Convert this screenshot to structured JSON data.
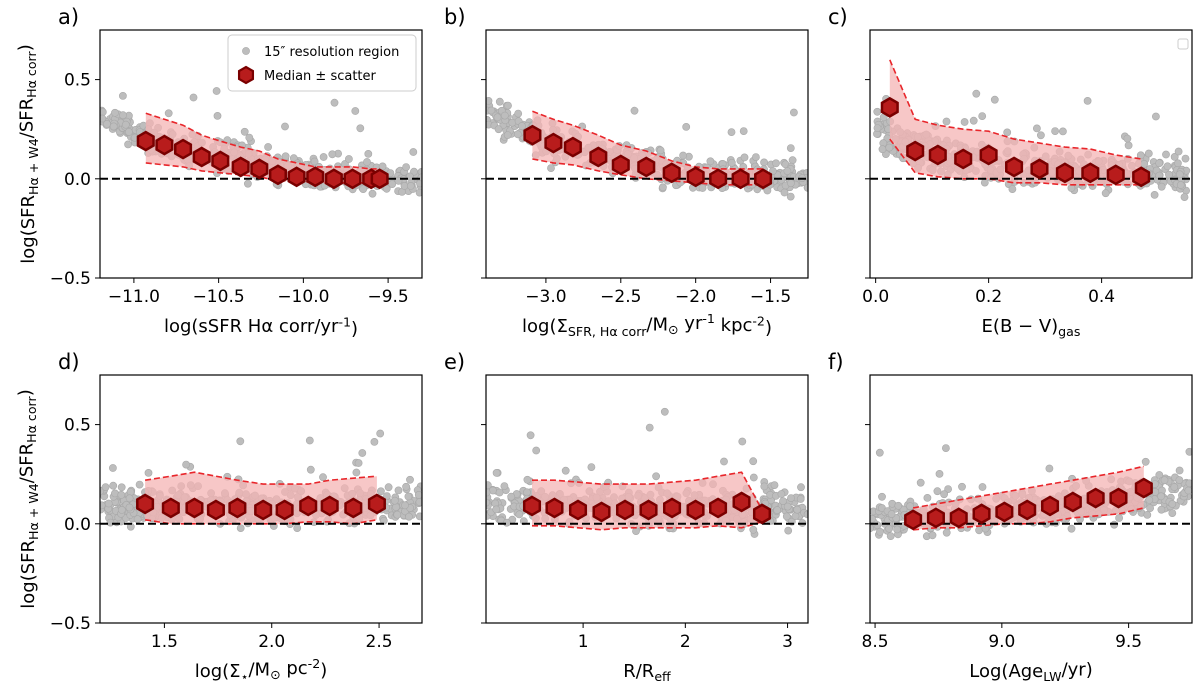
{
  "figure": {
    "ylabel": "log(SFR_{Hα + W4}/SFR_{Hα corr})",
    "legend": {
      "scatter_label": "15″ resolution region",
      "median_label": "Median ± scatter"
    }
  },
  "colors": {
    "scatter": "#bdbdbd",
    "scatter_edge": "#a8a8a8",
    "median_fill": "#b81c1c",
    "median_edge": "#7a0000",
    "band_fill": "#f4b4b4",
    "band_edge": "#e8262b",
    "reference_line": "#000000"
  },
  "chart_data": [
    {
      "type": "scatter",
      "panel": "a)",
      "xlabel": "log(sSFR Hα corr/yr^{-1})",
      "xlim": [
        -11.2,
        -9.3
      ],
      "ylim": [
        -0.5,
        0.75
      ],
      "xticks": [
        -11.0,
        -10.5,
        -10.0,
        -9.5
      ],
      "xtick_labels": [
        "−11.0",
        "−10.5",
        "−10.0",
        "−9.5"
      ],
      "yticks": [
        -0.5,
        0.0,
        0.5
      ],
      "ytick_labels": [
        "−0.5",
        "0.0",
        "0.5"
      ],
      "reference_y": 0,
      "legend": true,
      "scatter_profile": {
        "x_range": [
          -11.2,
          -9.3
        ],
        "trend": [
          [
            -11.2,
            0.3
          ],
          [
            -10.9,
            0.2
          ],
          [
            -10.5,
            0.12
          ],
          [
            -10.0,
            0.03
          ],
          [
            -9.3,
            0.0
          ]
        ],
        "spread": 0.1,
        "n": 480
      },
      "median": {
        "x": [
          -10.93,
          -10.82,
          -10.71,
          -10.6,
          -10.49,
          -10.37,
          -10.26,
          -10.15,
          -10.04,
          -9.93,
          -9.82,
          -9.71,
          -9.6,
          -9.55
        ],
        "y": [
          0.19,
          0.17,
          0.15,
          0.11,
          0.09,
          0.06,
          0.05,
          0.02,
          0.01,
          0.01,
          0.0,
          0.0,
          0.0,
          0.0
        ],
        "lo": [
          0.08,
          0.07,
          0.06,
          0.04,
          0.03,
          0.02,
          0.01,
          -0.01,
          -0.01,
          -0.02,
          -0.02,
          -0.02,
          -0.02,
          -0.02
        ],
        "hi": [
          0.33,
          0.3,
          0.27,
          0.22,
          0.19,
          0.16,
          0.14,
          0.1,
          0.08,
          0.06,
          0.06,
          0.06,
          0.05,
          0.05
        ]
      }
    },
    {
      "type": "scatter",
      "panel": "b)",
      "xlabel": "log(Σ_{SFR, Hα corr}/M_⊙ yr^{-1} kpc^{-2})",
      "xlim": [
        -3.4,
        -1.25
      ],
      "ylim": [
        -0.5,
        0.75
      ],
      "xticks": [
        -3.0,
        -2.5,
        -2.0,
        -1.5
      ],
      "xtick_labels": [
        "−3.0",
        "−2.5",
        "−2.0",
        "−1.5"
      ],
      "yticks": [
        -0.5,
        0.0,
        0.5
      ],
      "ytick_labels": [],
      "reference_y": 0,
      "legend": false,
      "scatter_profile": {
        "x_range": [
          -3.4,
          -1.25
        ],
        "trend": [
          [
            -3.4,
            0.32
          ],
          [
            -3.0,
            0.2
          ],
          [
            -2.5,
            0.1
          ],
          [
            -2.0,
            0.02
          ],
          [
            -1.25,
            0.0
          ]
        ],
        "spread": 0.1,
        "n": 480
      },
      "median": {
        "x": [
          -3.09,
          -2.95,
          -2.82,
          -2.65,
          -2.5,
          -2.33,
          -2.16,
          -2.0,
          -1.85,
          -1.7,
          -1.55
        ],
        "y": [
          0.22,
          0.18,
          0.16,
          0.11,
          0.07,
          0.06,
          0.03,
          0.01,
          0.0,
          0.0,
          0.0
        ],
        "lo": [
          0.1,
          0.08,
          0.07,
          0.04,
          0.02,
          0.0,
          -0.01,
          -0.02,
          -0.03,
          -0.03,
          -0.03
        ],
        "hi": [
          0.34,
          0.3,
          0.27,
          0.22,
          0.17,
          0.14,
          0.09,
          0.06,
          0.05,
          0.05,
          0.05
        ]
      }
    },
    {
      "type": "scatter",
      "panel": "c)",
      "xlabel": "E(B − V)_{gas}",
      "xlim": [
        -0.01,
        0.56
      ],
      "ylim": [
        -0.5,
        0.75
      ],
      "xticks": [
        0.0,
        0.2,
        0.4
      ],
      "xtick_labels": [
        "0.0",
        "0.2",
        "0.4"
      ],
      "yticks": [
        -0.5,
        0.0,
        0.5
      ],
      "ytick_labels": [],
      "reference_y": 0,
      "legend": false,
      "scatter_profile": {
        "x_range": [
          0.0,
          0.55
        ],
        "trend": [
          [
            0.0,
            0.25
          ],
          [
            0.05,
            0.15
          ],
          [
            0.2,
            0.08
          ],
          [
            0.4,
            0.03
          ],
          [
            0.55,
            0.01
          ]
        ],
        "spread": 0.11,
        "n": 480
      },
      "median": {
        "x": [
          0.025,
          0.07,
          0.11,
          0.155,
          0.2,
          0.245,
          0.29,
          0.335,
          0.38,
          0.425,
          0.47
        ],
        "y": [
          0.36,
          0.14,
          0.12,
          0.1,
          0.12,
          0.06,
          0.05,
          0.03,
          0.03,
          0.02,
          0.01
        ],
        "lo": [
          0.2,
          0.03,
          0.01,
          0.0,
          0.0,
          -0.02,
          -0.02,
          -0.03,
          -0.03,
          -0.03,
          -0.03
        ],
        "hi": [
          0.6,
          0.3,
          0.27,
          0.25,
          0.24,
          0.2,
          0.18,
          0.16,
          0.15,
          0.12,
          0.1
        ]
      }
    },
    {
      "type": "scatter",
      "panel": "d)",
      "xlabel": "log(Σ_⋆/M_⊙ pc^{-2})",
      "xlim": [
        1.2,
        2.7
      ],
      "ylim": [
        -0.5,
        0.75
      ],
      "xticks": [
        1.5,
        2.0,
        2.5
      ],
      "xtick_labels": [
        "1.5",
        "2.0",
        "2.5"
      ],
      "yticks": [
        -0.5,
        0.0,
        0.5
      ],
      "ytick_labels": [
        "−0.5",
        "0.0",
        "0.5"
      ],
      "reference_y": 0,
      "legend": false,
      "scatter_profile": {
        "x_range": [
          1.2,
          2.7
        ],
        "trend": [
          [
            1.2,
            0.1
          ],
          [
            2.0,
            0.08
          ],
          [
            2.7,
            0.1
          ]
        ],
        "spread": 0.12,
        "n": 480
      },
      "median": {
        "x": [
          1.41,
          1.53,
          1.64,
          1.74,
          1.84,
          1.96,
          2.06,
          2.17,
          2.27,
          2.38,
          2.49
        ],
        "y": [
          0.1,
          0.08,
          0.08,
          0.07,
          0.08,
          0.07,
          0.07,
          0.09,
          0.09,
          0.08,
          0.1
        ],
        "lo": [
          0.02,
          0.0,
          0.0,
          0.0,
          0.0,
          0.0,
          0.0,
          0.01,
          0.01,
          0.0,
          0.02
        ],
        "hi": [
          0.22,
          0.24,
          0.26,
          0.24,
          0.22,
          0.2,
          0.2,
          0.2,
          0.22,
          0.23,
          0.24
        ]
      }
    },
    {
      "type": "scatter",
      "panel": "e)",
      "xlabel": "R/R_{eff}",
      "xlim": [
        0.05,
        3.2
      ],
      "ylim": [
        -0.5,
        0.75
      ],
      "xticks": [
        1,
        2,
        3
      ],
      "xtick_labels": [
        "1",
        "2",
        "3"
      ],
      "yticks": [
        -0.5,
        0.0,
        0.5
      ],
      "ytick_labels": [],
      "reference_y": 0,
      "legend": false,
      "scatter_profile": {
        "x_range": [
          0.05,
          3.2
        ],
        "trend": [
          [
            0.05,
            0.1
          ],
          [
            1.5,
            0.08
          ],
          [
            3.2,
            0.08
          ]
        ],
        "spread": 0.12,
        "n": 480
      },
      "median": {
        "x": [
          0.5,
          0.72,
          0.95,
          1.18,
          1.41,
          1.64,
          1.87,
          2.1,
          2.32,
          2.55,
          2.75
        ],
        "y": [
          0.09,
          0.08,
          0.07,
          0.06,
          0.07,
          0.07,
          0.08,
          0.07,
          0.08,
          0.11,
          0.05
        ],
        "lo": [
          -0.01,
          -0.01,
          -0.02,
          -0.03,
          -0.02,
          -0.02,
          -0.02,
          -0.02,
          -0.01,
          -0.02,
          0.01
        ],
        "hi": [
          0.22,
          0.22,
          0.21,
          0.2,
          0.2,
          0.2,
          0.21,
          0.22,
          0.24,
          0.26,
          0.07
        ]
      }
    },
    {
      "type": "scatter",
      "panel": "f)",
      "xlabel": "Log(Age_{LW}/yr)",
      "xlim": [
        8.48,
        9.75
      ],
      "ylim": [
        -0.5,
        0.75
      ],
      "xticks": [
        8.5,
        9.0,
        9.5
      ],
      "xtick_labels": [
        "8.5",
        "9.0",
        "9.5"
      ],
      "yticks": [
        -0.5,
        0.0,
        0.5
      ],
      "ytick_labels": [],
      "reference_y": 0,
      "legend": false,
      "scatter_profile": {
        "x_range": [
          8.48,
          9.75
        ],
        "trend": [
          [
            8.48,
            0.02
          ],
          [
            9.0,
            0.06
          ],
          [
            9.75,
            0.16
          ]
        ],
        "spread": 0.11,
        "n": 480
      },
      "median": {
        "x": [
          8.65,
          8.74,
          8.83,
          8.92,
          9.01,
          9.1,
          9.19,
          9.28,
          9.37,
          9.46,
          9.56
        ],
        "y": [
          0.02,
          0.03,
          0.03,
          0.05,
          0.06,
          0.07,
          0.09,
          0.11,
          0.13,
          0.13,
          0.18
        ],
        "lo": [
          -0.03,
          -0.02,
          -0.02,
          -0.01,
          0.0,
          0.0,
          0.01,
          0.03,
          0.04,
          0.05,
          0.08
        ],
        "hi": [
          0.08,
          0.1,
          0.12,
          0.14,
          0.16,
          0.18,
          0.2,
          0.22,
          0.24,
          0.26,
          0.29
        ]
      }
    }
  ]
}
